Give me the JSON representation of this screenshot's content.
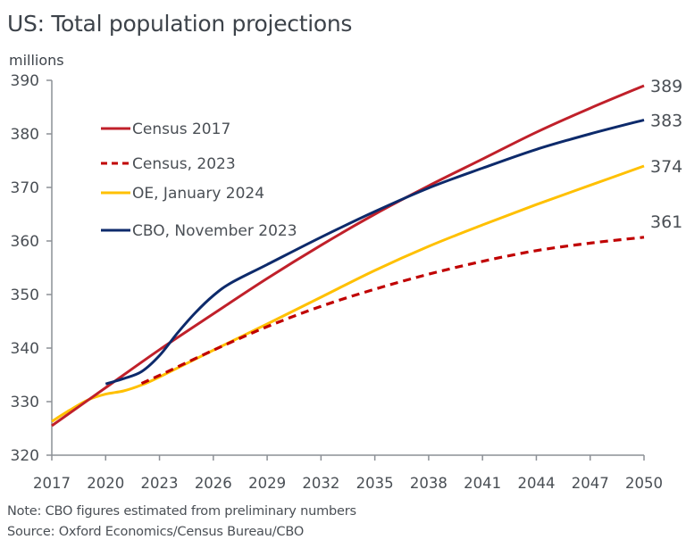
{
  "chart_data": {
    "type": "line",
    "title": "US: Total population projections",
    "ylabel": "millions",
    "xlabel": "",
    "xlim": [
      2017,
      2050
    ],
    "ylim": [
      320,
      390
    ],
    "x_ticks": [
      "2017",
      "2020",
      "2023",
      "2026",
      "2029",
      "2032",
      "2035",
      "2038",
      "2041",
      "2044",
      "2047",
      "2050"
    ],
    "y_ticks": [
      "320",
      "330",
      "340",
      "350",
      "360",
      "370",
      "380",
      "390"
    ],
    "grid": false,
    "legend_position": "top-left",
    "series": [
      {
        "name": "Census 2017",
        "color": "#c0202a",
        "style": "solid",
        "x": [
          2017,
          2020,
          2023,
          2026,
          2029,
          2032,
          2035,
          2038,
          2041,
          2044,
          2047,
          2050
        ],
        "values": [
          325.5,
          332.6,
          339.7,
          346.4,
          353.0,
          359.2,
          365.0,
          370.3,
          375.3,
          380.3,
          384.8,
          389.0
        ],
        "end_label": "389"
      },
      {
        "name": "Census, 2023",
        "color": "#c00000",
        "style": "dashed",
        "x": [
          2022,
          2023,
          2026,
          2029,
          2032,
          2035,
          2038,
          2041,
          2044,
          2047,
          2050
        ],
        "values": [
          333.4,
          334.9,
          339.6,
          344.0,
          347.8,
          351.0,
          353.8,
          356.2,
          358.2,
          359.6,
          360.7
        ],
        "end_label": "361"
      },
      {
        "name": "OE, January 2024",
        "color": "#ffc000",
        "style": "solid",
        "x": [
          2017,
          2018,
          2019,
          2020,
          2021,
          2022,
          2023,
          2026,
          2029,
          2032,
          2035,
          2038,
          2041,
          2044,
          2047,
          2050
        ],
        "values": [
          326.3,
          328.4,
          330.3,
          331.4,
          332.0,
          333.1,
          334.6,
          339.6,
          344.5,
          349.5,
          354.5,
          359.0,
          363.0,
          366.8,
          370.4,
          374.0
        ],
        "end_label": "374"
      },
      {
        "name": "CBO, November 2023",
        "color": "#0d2a6b",
        "style": "solid",
        "x": [
          2020,
          2021,
          2022,
          2023,
          2024,
          2025,
          2026,
          2027,
          2029,
          2032,
          2035,
          2038,
          2041,
          2044,
          2047,
          2050
        ],
        "values": [
          333.3,
          334.3,
          335.6,
          338.6,
          342.8,
          346.6,
          349.8,
          352.2,
          355.6,
          360.7,
          365.5,
          369.9,
          373.6,
          377.1,
          380.0,
          382.6
        ],
        "end_label": "383"
      }
    ]
  },
  "footer": {
    "note": "Note: CBO figures estimated from preliminary numbers",
    "source": "Source: Oxford Economics/Census Bureau/CBO"
  }
}
